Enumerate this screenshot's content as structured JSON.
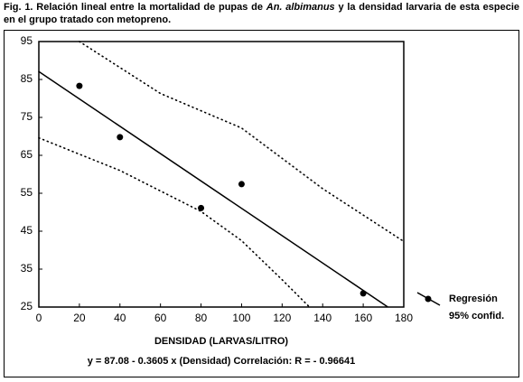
{
  "chart_data": {
    "type": "scatter",
    "caption": [
      "Fig. 1. Relación lineal entre la mortalidad de pupas de ",
      "An. albimanus",
      " y la densidad larvaria de esta especie en el grupo tratado con metopreno."
    ],
    "xlabel": "DENSIDAD (LARVAS/LITRO)",
    "equation": "y = 87.08 - 0.3605 x (Densidad)  Correlación: R = - 0.96641",
    "xlim": [
      0,
      180
    ],
    "xticks": [
      0,
      20,
      40,
      60,
      80,
      100,
      120,
      140,
      160,
      180
    ],
    "ylim": [
      25,
      95
    ],
    "yticks": [
      25,
      35,
      45,
      55,
      65,
      75,
      85,
      95
    ],
    "series": [
      {
        "name": "Regresión",
        "color": "#000000",
        "x": [
          20,
          40,
          80,
          100,
          160
        ],
        "values": [
          83.3,
          69.8,
          51.1,
          57.4,
          28.6
        ]
      }
    ],
    "fit": {
      "x": [
        0,
        172
      ],
      "values": [
        87.08,
        25.07
      ]
    },
    "band": {
      "name": "95% confid.",
      "upper": {
        "x": [
          20,
          60,
          100,
          140,
          180
        ],
        "values": [
          95,
          81.3,
          72.2,
          56.2,
          42.3
        ]
      },
      "lower": {
        "x": [
          0,
          40,
          80,
          100,
          120,
          133.5
        ],
        "values": [
          69.6,
          61,
          50.2,
          42.5,
          32.2,
          25
        ]
      }
    }
  }
}
